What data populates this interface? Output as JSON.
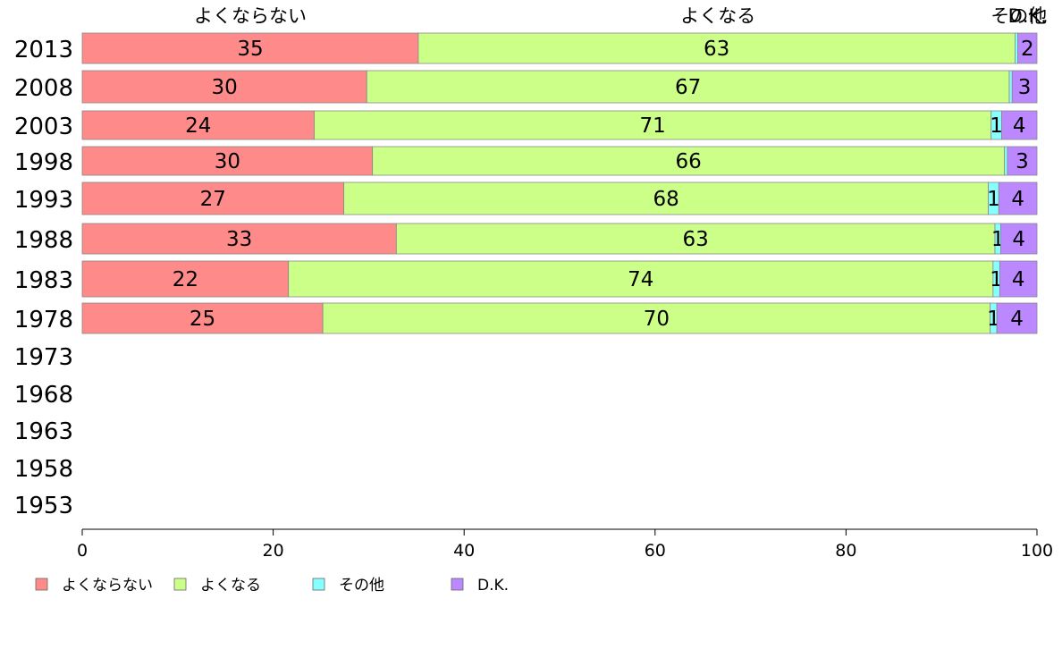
{
  "chart_data": {
    "type": "bar",
    "orientation": "horizontal",
    "stacked": true,
    "categories": [
      "2013",
      "2008",
      "2003",
      "1998",
      "1993",
      "1988",
      "1983",
      "1978",
      "1973",
      "1968",
      "1963",
      "1958",
      "1953"
    ],
    "series": [
      {
        "name": "よくならない",
        "color": "#ff8a8a",
        "values": [
          35.2,
          29.8,
          24.3,
          30.4,
          27.4,
          32.9,
          21.6,
          25.2,
          null,
          null,
          null,
          null,
          null
        ],
        "labels": [
          "35",
          "30",
          "24",
          "30",
          "27",
          "33",
          "22",
          "25",
          "",
          "",
          "",
          "",
          ""
        ]
      },
      {
        "name": "よくなる",
        "color": "#ccff88",
        "values": [
          62.5,
          67.3,
          70.9,
          66.2,
          67.5,
          62.7,
          73.8,
          69.9,
          null,
          null,
          null,
          null,
          null
        ],
        "labels": [
          "63",
          "67",
          "71",
          "66",
          "68",
          "63",
          "74",
          "70",
          "",
          "",
          "",
          "",
          ""
        ]
      },
      {
        "name": "その他",
        "color": "#88ffff",
        "values": [
          0.3,
          0.3,
          1.1,
          0.3,
          1.1,
          0.6,
          0.7,
          0.7,
          null,
          null,
          null,
          null,
          null
        ],
        "labels": [
          "",
          "",
          "1",
          "",
          "1",
          "1",
          "1",
          "1",
          "",
          "",
          "",
          "",
          ""
        ]
      },
      {
        "name": "D.K.",
        "color": "#bb88ff",
        "values": [
          2.0,
          2.6,
          3.7,
          3.1,
          4.0,
          3.8,
          3.9,
          4.2,
          null,
          null,
          null,
          null,
          null
        ],
        "labels": [
          "2",
          "3",
          "4",
          "3",
          "4",
          "4",
          "4",
          "4",
          "",
          "",
          "",
          "",
          ""
        ]
      }
    ],
    "top_labels": [
      "よくならない",
      "よくなる",
      "その他",
      "D.K."
    ],
    "top_label_positions": [
      17.6,
      66.6,
      98.1,
      99.0
    ],
    "x_ticks": [
      0,
      20,
      40,
      60,
      80,
      100
    ],
    "xlim": [
      0,
      100
    ],
    "legend": {
      "position": "bottom-left",
      "entries": [
        "よくならない",
        "よくなる",
        "その他",
        "D.K."
      ]
    },
    "grid": false,
    "title": "",
    "xlabel": "",
    "ylabel": ""
  }
}
